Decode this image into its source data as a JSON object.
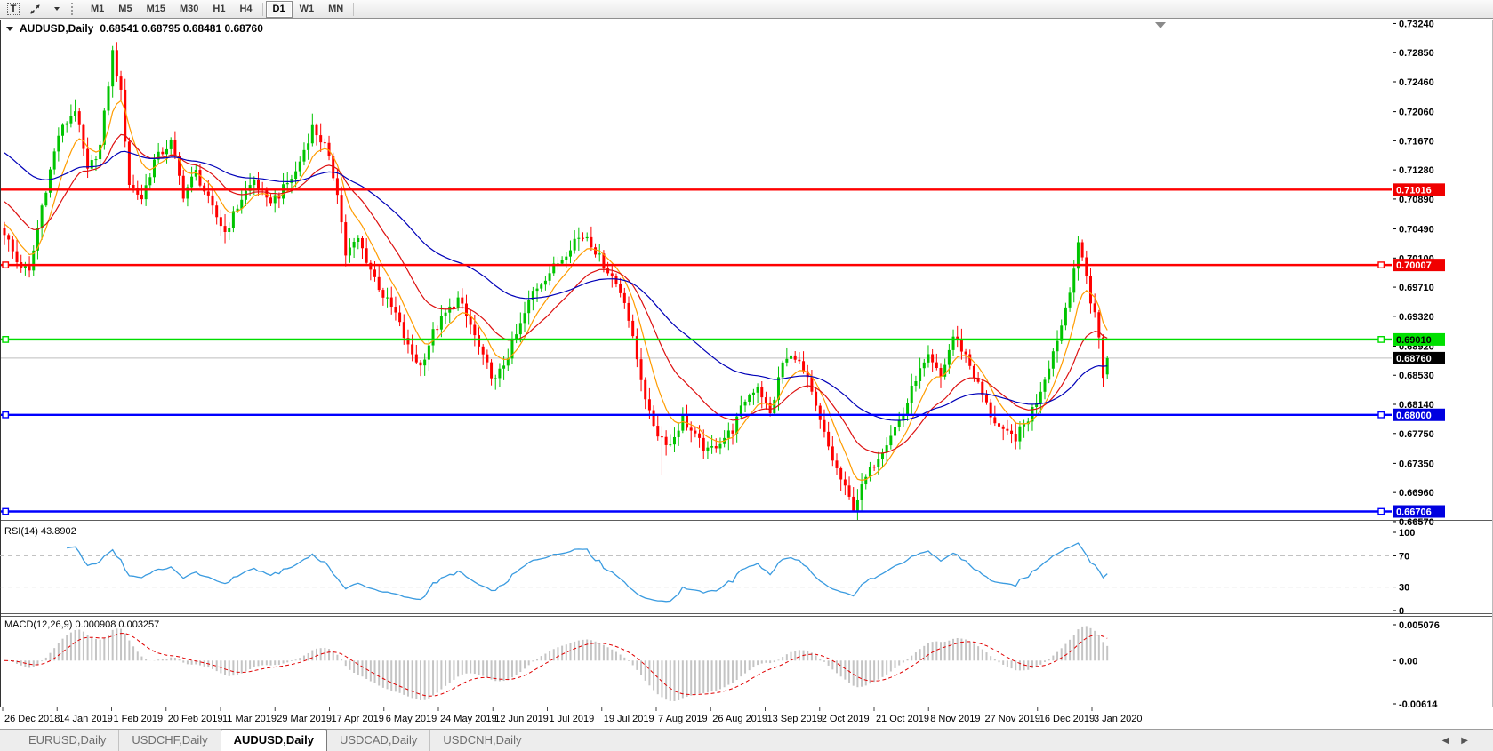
{
  "toolbar": {
    "text_tool_label": "T",
    "timeframes": [
      "M1",
      "M5",
      "M15",
      "M30",
      "H1",
      "H4",
      "D1",
      "W1",
      "MN"
    ],
    "active_timeframe": "D1"
  },
  "chart": {
    "title_symbol": "AUDUSD,Daily",
    "title_values": "0.68541 0.68795 0.68481 0.68760"
  },
  "indicators": {
    "rsi_label": "RSI(14) 43.8902",
    "macd_label": "MACD(12,26,9) 0.000908 0.003257"
  },
  "tabs": {
    "items": [
      "EURUSD,Daily",
      "USDCHF,Daily",
      "AUDUSD,Daily",
      "USDCAD,Daily",
      "USDCNH,Daily"
    ],
    "active": "AUDUSD,Daily",
    "scroll_left": "◀",
    "scroll_right": "▶"
  },
  "chart_data": {
    "type": "candlestick",
    "symbol": "AUDUSD",
    "timeframe": "Daily",
    "last_ohlc": {
      "open": 0.68541,
      "high": 0.68795,
      "low": 0.68481,
      "close": 0.6876
    },
    "price_axis_ticks": [
      "0.73240",
      "0.72850",
      "0.72460",
      "0.72060",
      "0.71670",
      "0.71280",
      "0.70890",
      "0.70490",
      "0.70100",
      "0.69710",
      "0.69320",
      "0.68920",
      "0.68530",
      "0.68140",
      "0.67750",
      "0.67350",
      "0.66960",
      "0.66570"
    ],
    "price_axis_range": {
      "top": 0.73293,
      "bottom": 0.66593
    },
    "x_axis_dates": [
      "26 Dec 2018",
      "14 Jan 2019",
      "1 Feb 2019",
      "20 Feb 2019",
      "11 Mar 2019",
      "29 Mar 2019",
      "17 Apr 2019",
      "6 May 2019",
      "24 May 2019",
      "12 Jun 2019",
      "1 Jul 2019",
      "19 Jul 2019",
      "7 Aug 2019",
      "26 Aug 2019",
      "13 Sep 2019",
      "2 Oct 2019",
      "21 Oct 2019",
      "8 Nov 2019",
      "27 Nov 2019",
      "16 Dec 2019",
      "3 Jan 2020"
    ],
    "candle_up_color": "#00C400",
    "candle_down_color": "#FF0000",
    "candles_approx": {
      "count": 266,
      "anchors": [
        [
          0,
          0.7045
        ],
        [
          3,
          0.7005
        ],
        [
          6,
          0.699
        ],
        [
          9,
          0.708
        ],
        [
          13,
          0.7175
        ],
        [
          17,
          0.721
        ],
        [
          20,
          0.7125
        ],
        [
          23,
          0.716
        ],
        [
          26,
          0.7285
        ],
        [
          28,
          0.723
        ],
        [
          30,
          0.711
        ],
        [
          33,
          0.709
        ],
        [
          36,
          0.714
        ],
        [
          40,
          0.7165
        ],
        [
          43,
          0.7095
        ],
        [
          46,
          0.7125
        ],
        [
          50,
          0.7075
        ],
        [
          53,
          0.7045
        ],
        [
          57,
          0.709
        ],
        [
          60,
          0.7115
        ],
        [
          63,
          0.7085
        ],
        [
          66,
          0.7095
        ],
        [
          70,
          0.7125
        ],
        [
          74,
          0.7185
        ],
        [
          77,
          0.716
        ],
        [
          80,
          0.71
        ],
        [
          82,
          0.7015
        ],
        [
          85,
          0.7035
        ],
        [
          88,
          0.6995
        ],
        [
          91,
          0.696
        ],
        [
          94,
          0.6935
        ],
        [
          97,
          0.689
        ],
        [
          100,
          0.6865
        ],
        [
          103,
          0.691
        ],
        [
          106,
          0.6935
        ],
        [
          109,
          0.6955
        ],
        [
          112,
          0.692
        ],
        [
          115,
          0.6875
        ],
        [
          118,
          0.6845
        ],
        [
          121,
          0.688
        ],
        [
          124,
          0.692
        ],
        [
          127,
          0.6965
        ],
        [
          130,
          0.6985
        ],
        [
          134,
          0.701
        ],
        [
          137,
          0.7035
        ],
        [
          140,
          0.704
        ],
        [
          143,
          0.701
        ],
        [
          146,
          0.6985
        ],
        [
          149,
          0.6955
        ],
        [
          151,
          0.69
        ],
        [
          153,
          0.685
        ],
        [
          155,
          0.68
        ],
        [
          157,
          0.6775
        ],
        [
          160,
          0.676
        ],
        [
          163,
          0.6795
        ],
        [
          166,
          0.677
        ],
        [
          169,
          0.675
        ],
        [
          172,
          0.6765
        ],
        [
          175,
          0.678
        ],
        [
          178,
          0.682
        ],
        [
          181,
          0.684
        ],
        [
          184,
          0.68
        ],
        [
          187,
          0.687
        ],
        [
          190,
          0.688
        ],
        [
          193,
          0.6845
        ],
        [
          196,
          0.679
        ],
        [
          199,
          0.674
        ],
        [
          202,
          0.67
        ],
        [
          204,
          0.6675
        ],
        [
          207,
          0.6715
        ],
        [
          210,
          0.6745
        ],
        [
          213,
          0.6775
        ],
        [
          216,
          0.68
        ],
        [
          219,
          0.685
        ],
        [
          222,
          0.6875
        ],
        [
          225,
          0.685
        ],
        [
          228,
          0.6905
        ],
        [
          231,
          0.688
        ],
        [
          234,
          0.684
        ],
        [
          237,
          0.68
        ],
        [
          240,
          0.6775
        ],
        [
          243,
          0.677
        ],
        [
          246,
          0.6795
        ],
        [
          248,
          0.682
        ],
        [
          250,
          0.685
        ],
        [
          252,
          0.6885
        ],
        [
          254,
          0.692
        ],
        [
          256,
          0.697
        ],
        [
          258,
          0.7025
        ],
        [
          259,
          0.701
        ],
        [
          260,
          0.699
        ],
        [
          261,
          0.695
        ],
        [
          262,
          0.6935
        ],
        [
          263,
          0.6905
        ],
        [
          264,
          0.6854
        ],
        [
          265,
          0.6876
        ]
      ],
      "overrides": {
        "6": {
          "low": 0.6984
        },
        "158": {
          "low": 0.672
        },
        "204": {
          "low": 0.6671
        },
        "258": {
          "high": 0.704
        },
        "265": {
          "open": 0.68541,
          "high": 0.68795,
          "low": 0.68481,
          "close": 0.6876
        }
      }
    },
    "moving_averages": [
      {
        "period": 8,
        "color": "#FF9C00",
        "start_value": 0.706
      },
      {
        "period": 21,
        "color": "#DD1111",
        "start_value": 0.709
      },
      {
        "period": 55,
        "color": "#0000B8",
        "start_value": 0.7155
      }
    ],
    "horizontal_lines": [
      {
        "price": 0.71016,
        "label": "0.71016",
        "color": "#FF0000",
        "badge_bg": "#F00000",
        "badge_fg": "#FFFFFF",
        "handles": false
      },
      {
        "price": 0.70007,
        "label": "0.70007",
        "color": "#FF0000",
        "badge_bg": "#F00000",
        "badge_fg": "#FFFFFF",
        "handles": true
      },
      {
        "price": 0.6901,
        "label": "0.69010",
        "color": "#00DD00",
        "badge_bg": "#00E000",
        "badge_fg": "#000000",
        "handles": true
      },
      {
        "price": 0.68,
        "label": "0.68000",
        "color": "#0000FF",
        "badge_bg": "#0000E0",
        "badge_fg": "#FFFFFF",
        "handles": true
      },
      {
        "price": 0.66706,
        "label": "0.66706",
        "color": "#0000FF",
        "badge_bg": "#0000E0",
        "badge_fg": "#FFFFFF",
        "handles": true
      }
    ],
    "bid_line": {
      "price": 0.6876,
      "label": "0.68760",
      "line_color": "#BDBDBD",
      "badge_bg": "#000000",
      "badge_fg": "#FFFFFF"
    },
    "rsi": {
      "period": 14,
      "current": 43.8902,
      "axis_labels": [
        "100",
        "70",
        "30",
        "0"
      ],
      "dashed_levels": [
        70,
        30
      ],
      "line_color": "#3A9BE0"
    },
    "macd": {
      "fast": 12,
      "slow": 26,
      "signal": 9,
      "current_main": 0.000908,
      "current_signal": 0.003257,
      "axis_max": 0.005076,
      "axis_min": -0.00614,
      "axis_labels": [
        "0.005076",
        "0.00",
        "-0.00614"
      ],
      "bar_color": "#C4C4C4",
      "signal_color": "#E00000"
    }
  }
}
